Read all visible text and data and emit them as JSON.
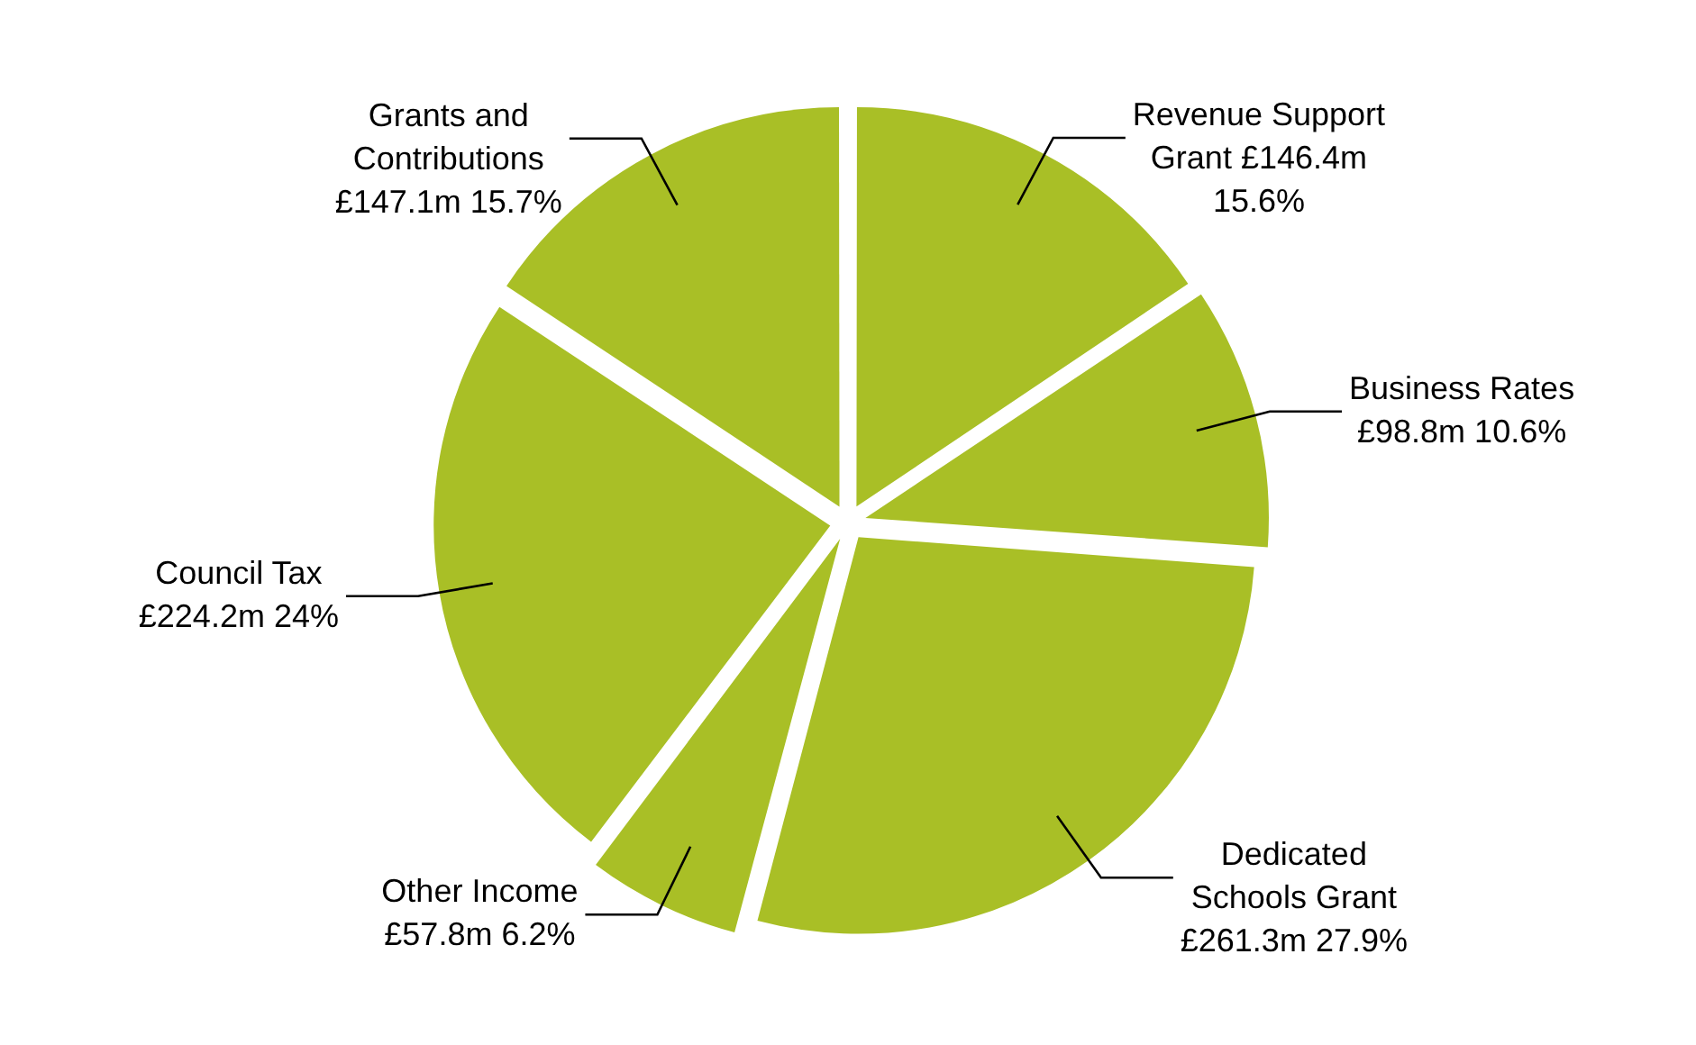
{
  "chart_data": {
    "type": "pie",
    "categories": [
      "Revenue Support Grant",
      "Business Rates",
      "Dedicated Schools Grant",
      "Other Income",
      "Council Tax",
      "Grants and Contributions"
    ],
    "values": [
      15.6,
      10.6,
      27.9,
      6.2,
      24,
      15.7
    ],
    "colors": [
      "#a9bf26",
      "#a9bf26",
      "#a9bf26",
      "#a9bf26",
      "#a9bf26",
      "#a9bf26"
    ],
    "value_labels": [
      "£146.4m 15.6%",
      "£98.8m 10.6%",
      "£261.3m 27.9%",
      "£57.8m 6.2%",
      "£224.2m 24%",
      "£147.1m 15.7%"
    ],
    "legend": false
  }
}
